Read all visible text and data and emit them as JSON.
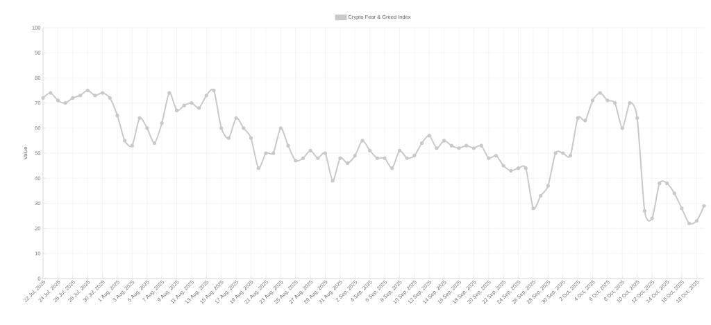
{
  "chart_data": {
    "type": "line",
    "ylabel": "Value",
    "categories": [
      "22 Jul, 2025",
      null,
      "24 Jul, 2025",
      null,
      "26 Jul, 2025",
      null,
      "28 Jul, 2025",
      null,
      "30 Jul, 2025",
      null,
      "1 Aug, 2025",
      null,
      "3 Aug, 2025",
      null,
      "5 Aug, 2025",
      null,
      "7 Aug, 2025",
      null,
      "9 Aug, 2025",
      null,
      "11 Aug, 2025",
      null,
      "13 Aug, 2025",
      null,
      "15 Aug, 2025",
      null,
      "17 Aug, 2025",
      null,
      "19 Aug, 2025",
      null,
      "21 Aug, 2025",
      null,
      "23 Aug, 2025",
      null,
      "25 Aug, 2025",
      null,
      "27 Aug, 2025",
      null,
      "29 Aug, 2025",
      null,
      "31 Aug, 2025",
      null,
      "2 Sep, 2025",
      null,
      "4 Sep, 2025",
      null,
      "6 Sep, 2025",
      null,
      "8 Sep, 2025",
      null,
      "10 Sep, 2025",
      null,
      "12 Sep, 2025",
      null,
      "14 Sep, 2025",
      null,
      "16 Sep, 2025",
      null,
      "18 Sep, 2025",
      null,
      "20 Sep, 2025",
      null,
      "22 Sep, 2025",
      null,
      "24 Sep, 2025",
      null,
      "26 Sep, 2025",
      null,
      "28 Sep, 2025",
      null,
      "30 Sep, 2025",
      null,
      "2 Oct, 2025",
      null,
      "4 Oct, 2025",
      null,
      "6 Oct, 2025",
      null,
      "8 Oct, 2025",
      null,
      "10 Oct, 2025",
      null,
      "12 Oct, 2025",
      null,
      "14 Oct, 2025",
      null,
      "16 Oct, 2025",
      null,
      "18 Oct, 2025",
      null
    ],
    "series": [
      {
        "name": "Crypto Fear & Greed Index",
        "color": "#c9c9c9",
        "values": [
          72,
          74,
          71,
          70,
          72,
          73,
          75,
          73,
          74,
          72,
          65,
          55,
          53,
          64,
          60,
          54,
          62,
          74,
          67,
          69,
          70,
          68,
          73,
          75,
          60,
          56,
          64,
          60,
          56,
          44,
          50,
          50,
          60,
          53,
          47,
          48,
          51,
          48,
          50,
          39,
          48,
          46,
          49,
          55,
          51,
          48,
          48,
          44,
          51,
          48,
          49,
          54,
          57,
          52,
          55,
          53,
          52,
          53,
          52,
          53,
          48,
          49,
          45,
          43,
          44,
          44,
          28,
          33,
          37,
          50,
          50,
          49,
          64,
          63,
          71,
          74,
          71,
          70,
          60,
          70,
          64,
          27,
          24,
          38,
          38,
          34,
          28,
          22,
          23,
          29
        ]
      }
    ],
    "ylim": [
      0,
      100
    ],
    "yticks": [
      0,
      10,
      20,
      30,
      40,
      50,
      60,
      70,
      80,
      90,
      100
    ],
    "grid": true,
    "legend": "top",
    "marker": "circle",
    "line_style": "solid"
  }
}
